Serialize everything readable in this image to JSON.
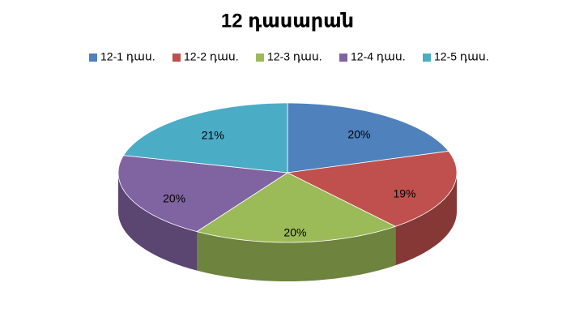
{
  "chart_data": {
    "type": "pie",
    "title": "12 դասարան",
    "categories": [
      "12-1 դաս.",
      "12-2 դաս.",
      "12-3 դաս.",
      "12-4 դաս.",
      "12-5 դաս."
    ],
    "values": [
      20,
      19,
      20,
      20,
      21
    ],
    "value_labels": [
      "20%",
      "19%",
      "20%",
      "20%",
      "21%"
    ],
    "colors": [
      "#4f81bd",
      "#c0504d",
      "#9bbb59",
      "#8064a2",
      "#4bacc6"
    ],
    "legend": "top"
  }
}
